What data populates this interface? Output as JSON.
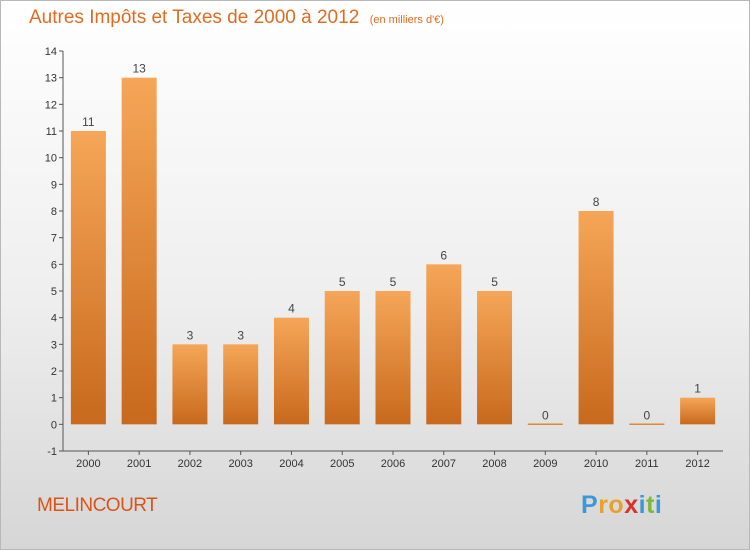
{
  "title": "Autres Impôts et Taxes de 2000 à 2012",
  "subtitle": "(en milliers d'€)",
  "city": "MELINCOURT",
  "logo": {
    "letters": [
      "P",
      "r",
      "o",
      "x",
      "i",
      "t",
      "i"
    ],
    "colors": [
      "#3a9ad9",
      "#e8a12c",
      "#e8a12c",
      "#d8322a",
      "#3a9ad9",
      "#7cb83a",
      "#3a9ad9"
    ]
  },
  "colors": {
    "bar_light": "#f6a658",
    "bar_dark": "#c8691d",
    "axis": "#555555",
    "grid_tick": "#333333"
  },
  "chart_data": {
    "type": "bar",
    "categories": [
      "2000",
      "2001",
      "2002",
      "2003",
      "2004",
      "2005",
      "2006",
      "2007",
      "2008",
      "2009",
      "2010",
      "2011",
      "2012"
    ],
    "values": [
      11,
      13,
      3,
      3,
      4,
      5,
      5,
      6,
      5,
      0,
      8,
      0,
      1
    ],
    "data_labels": [
      "11",
      "13",
      "3",
      "3",
      "4",
      "5",
      "5",
      "6",
      "5",
      "0",
      "8",
      "0",
      "1"
    ],
    "yticks": [
      -1,
      0,
      1,
      2,
      3,
      4,
      5,
      6,
      7,
      8,
      9,
      10,
      11,
      12,
      13,
      14
    ],
    "ylim": [
      -1,
      14
    ],
    "grid": false,
    "legend": "none"
  }
}
